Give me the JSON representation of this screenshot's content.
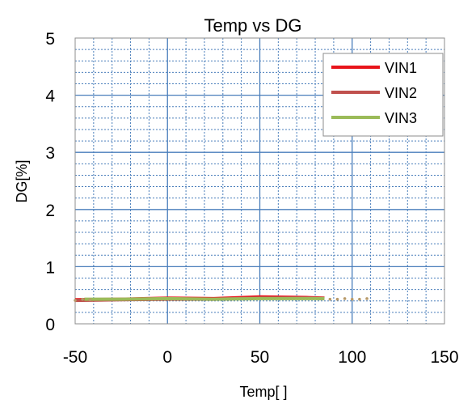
{
  "chart_data": {
    "type": "line",
    "title": "Temp vs DG",
    "xlabel": "Temp[ ]",
    "ylabel": "DG[%]",
    "xlim": [
      -50,
      150
    ],
    "ylim": [
      0,
      5
    ],
    "x_ticks": [
      "-50",
      "0",
      "50",
      "100",
      "150"
    ],
    "y_ticks": [
      "0",
      "1",
      "2",
      "3",
      "4",
      "5"
    ],
    "grid": "major solid, minor dotted",
    "legend_position": "top-right",
    "series": [
      {
        "name": "VIN1",
        "color": "#e8141a",
        "x": [
          -50,
          -25,
          0,
          25,
          50,
          75,
          85
        ],
        "y": [
          0.42,
          0.43,
          0.45,
          0.44,
          0.47,
          0.46,
          0.45
        ]
      },
      {
        "name": "VIN2",
        "color": "#c0504d",
        "x": [
          -50,
          -25,
          0,
          25,
          50,
          75,
          85
        ],
        "y": [
          0.41,
          0.42,
          0.43,
          0.43,
          0.45,
          0.45,
          0.44
        ]
      },
      {
        "name": "VIN3",
        "color": "#9bbb59",
        "x": [
          -45,
          -25,
          0,
          25,
          50,
          75,
          85
        ],
        "y": [
          0.43,
          0.43,
          0.44,
          0.43,
          0.44,
          0.44,
          0.44
        ]
      }
    ],
    "extrapolated_points": {
      "color": "#b89a6a",
      "x": [
        -50,
        -46,
        -42,
        88,
        92,
        96,
        100,
        104,
        108
      ],
      "y": [
        0.41,
        0.43,
        0.42,
        0.43,
        0.43,
        0.44,
        0.43,
        0.43,
        0.44
      ]
    }
  }
}
